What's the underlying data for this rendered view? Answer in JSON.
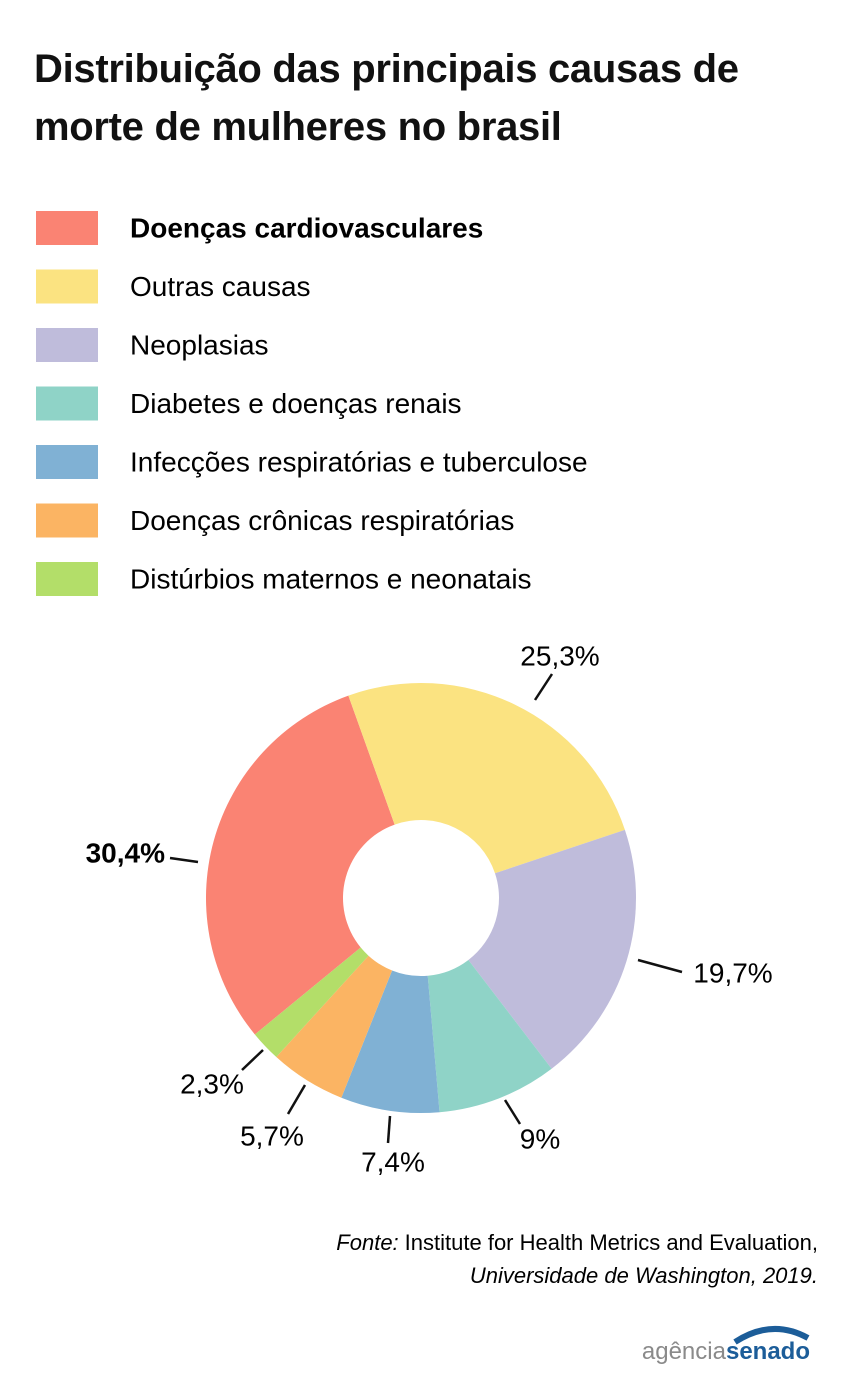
{
  "chart_data": {
    "type": "pie",
    "title": "Distribuição das principais causas de morte de mulheres no brasil",
    "categories": [
      "Doenças cardiovasculares",
      "Outras causas",
      "Neoplasias",
      "Diabetes e doenças renais",
      "Infecções respiratórias e tuberculose",
      "Doenças crônicas respiratórias",
      "Distúrbios maternos e neonatais"
    ],
    "values": [
      30.4,
      25.3,
      19.7,
      9,
      7.4,
      5.7,
      2.3
    ],
    "value_labels": [
      "30,4%",
      "25,3%",
      "19,7%",
      "9%",
      "7,4%",
      "5,7%",
      "2,3%"
    ],
    "colors": [
      "#fa8373",
      "#fbe381",
      "#bfbcdb",
      "#8fd3c7",
      "#80b1d4",
      "#fbb463",
      "#b3de69"
    ],
    "source": {
      "prefix": "Fonte:",
      "text": "Institute for Health Metrics and Evaluation,",
      "line2": "Universidade de Washington, 2019."
    }
  },
  "logo": {
    "part1": "agência",
    "part2": "senado"
  }
}
